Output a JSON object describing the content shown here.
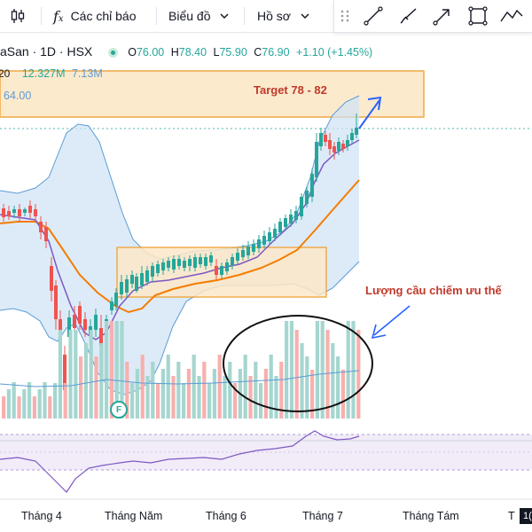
{
  "toolbar": {
    "indicators_label": "Các chỉ báo",
    "chart_type_label": "Biểu đồ",
    "profile_label": "Hồ sơ"
  },
  "legend": {
    "symbol_partial": "aSan · 1D · HSX",
    "open_label": "O",
    "open": "76.00",
    "high_label": "H",
    "high": "78.40",
    "low_label": "L",
    "low": "75.90",
    "close_label": "C",
    "close": "76.90",
    "change": "+1.10 (+1.45%)",
    "volume_prefix": "20",
    "volume_value": "12.327M",
    "volume_avg": "7.13M",
    "bb_value": "64.00"
  },
  "annotations": {
    "target_text": "Target 78 - 82",
    "demand_text": "Lượng cầu chiếm ưu thế"
  },
  "time_axis": [
    "Tháng 4",
    "Tháng Năm",
    "Tháng 6",
    "Tháng 7",
    "Tháng Tám",
    "T"
  ],
  "axis_corner_badge": "1(",
  "financials_badge": "F",
  "colors": {
    "up": "#26a69a",
    "down": "#ef5350",
    "volume_up": "#a5d6cf",
    "volume_down": "#f7b0ae",
    "ma_orange": "#f57c00",
    "ma_purple": "#7e57c2",
    "bollinger_fill": "#cfe3f5",
    "bollinger_line": "#5b9bd5",
    "box_fill": "#fce8c8",
    "box_border": "#f0a030",
    "arrow_blue": "#2962ff",
    "annotation_red": "#c0392b"
  },
  "icons": [
    "candles-icon",
    "fx-icon",
    "chevron-down-icon",
    "grid-handle-icon",
    "trend-line-icon",
    "brush-icon",
    "arrow-icon",
    "rectangle-icon",
    "path-icon"
  ]
}
